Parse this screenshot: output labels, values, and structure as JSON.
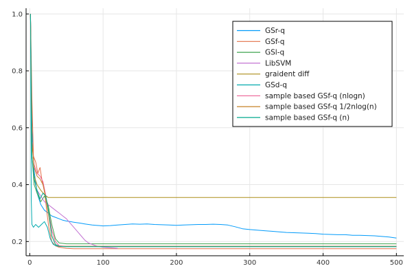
{
  "chart_data": {
    "type": "line",
    "title": "",
    "xlabel": "",
    "ylabel": "",
    "xlim": [
      -5,
      510
    ],
    "ylim": [
      0.15,
      1.02
    ],
    "xticks": [
      0,
      100,
      200,
      300,
      400,
      500
    ],
    "yticks": [
      0.2,
      0.4,
      0.6,
      0.8,
      1.0
    ],
    "xtick_labels": [
      "0",
      "100",
      "200",
      "300",
      "400",
      "500"
    ],
    "ytick_labels": [
      "0.2",
      "0.4",
      "0.6",
      "0.8",
      "1.0"
    ],
    "grid": true,
    "legend_position": "top-right",
    "series": [
      {
        "name": "GSr-q",
        "color": "#009AFA",
        "x": [
          1,
          3,
          6,
          10,
          15,
          20,
          25,
          30,
          35,
          40,
          45,
          50,
          55,
          60,
          65,
          70,
          75,
          80,
          85,
          90,
          95,
          100,
          110,
          120,
          130,
          140,
          150,
          160,
          170,
          180,
          190,
          200,
          210,
          220,
          230,
          240,
          250,
          260,
          270,
          280,
          290,
          300,
          310,
          320,
          330,
          340,
          350,
          360,
          370,
          380,
          390,
          400,
          410,
          420,
          430,
          440,
          450,
          460,
          470,
          480,
          490,
          500
        ],
        "y": [
          1.0,
          0.6,
          0.45,
          0.37,
          0.33,
          0.31,
          0.3,
          0.29,
          0.285,
          0.28,
          0.275,
          0.272,
          0.27,
          0.268,
          0.266,
          0.264,
          0.262,
          0.26,
          0.258,
          0.257,
          0.256,
          0.255,
          0.256,
          0.258,
          0.26,
          0.262,
          0.261,
          0.262,
          0.26,
          0.259,
          0.258,
          0.257,
          0.258,
          0.259,
          0.26,
          0.26,
          0.261,
          0.26,
          0.258,
          0.252,
          0.245,
          0.242,
          0.24,
          0.238,
          0.236,
          0.234,
          0.232,
          0.231,
          0.23,
          0.229,
          0.228,
          0.226,
          0.225,
          0.224,
          0.224,
          0.222,
          0.222,
          0.221,
          0.22,
          0.218,
          0.216,
          0.212
        ]
      },
      {
        "name": "GSf-q",
        "color": "#E36F47",
        "x": [
          1,
          3,
          5,
          8,
          11,
          14,
          17,
          20,
          23,
          26,
          30,
          35,
          40,
          50,
          60,
          80,
          100,
          150,
          200,
          250,
          300,
          350,
          400,
          450,
          500
        ],
        "y": [
          1.0,
          0.7,
          0.5,
          0.48,
          0.44,
          0.46,
          0.41,
          0.38,
          0.31,
          0.25,
          0.2,
          0.185,
          0.18,
          0.176,
          0.175,
          0.175,
          0.175,
          0.175,
          0.175,
          0.175,
          0.175,
          0.175,
          0.175,
          0.175,
          0.175
        ]
      },
      {
        "name": "GSl-q",
        "color": "#3EA44E",
        "x": [
          1,
          3,
          6,
          10,
          15,
          20,
          25,
          30,
          35,
          40,
          50,
          60,
          80,
          100,
          150,
          200,
          250,
          300,
          350,
          400,
          450,
          500
        ],
        "y": [
          1.0,
          0.5,
          0.4,
          0.37,
          0.34,
          0.36,
          0.33,
          0.26,
          0.21,
          0.195,
          0.192,
          0.192,
          0.192,
          0.192,
          0.192,
          0.192,
          0.192,
          0.192,
          0.192,
          0.192,
          0.192,
          0.192
        ]
      },
      {
        "name": "LibSVM",
        "color": "#C271D2",
        "x": [
          1,
          3,
          6,
          10,
          15,
          20,
          25,
          30,
          35,
          40,
          45,
          50,
          55,
          60,
          65,
          70,
          75,
          80,
          85,
          90,
          95,
          100,
          110,
          120
        ],
        "y": [
          1.0,
          0.5,
          0.42,
          0.38,
          0.36,
          0.34,
          0.33,
          0.32,
          0.31,
          0.3,
          0.29,
          0.28,
          0.265,
          0.25,
          0.235,
          0.22,
          0.205,
          0.195,
          0.19,
          0.185,
          0.182,
          0.18,
          0.178,
          0.176
        ]
      },
      {
        "name": "graident diff",
        "color": "#AC8D18",
        "x": [
          1,
          3,
          6,
          10,
          15,
          20,
          25,
          30,
          100,
          200,
          300,
          400,
          500
        ],
        "y": [
          1.0,
          0.5,
          0.43,
          0.4,
          0.38,
          0.365,
          0.355,
          0.355,
          0.355,
          0.355,
          0.355,
          0.355,
          0.355
        ]
      },
      {
        "name": "GSd-q",
        "color": "#00A9AD",
        "x": [
          1,
          2,
          3,
          5,
          8,
          12,
          16,
          20,
          24,
          28,
          32,
          36,
          40,
          50,
          60,
          80,
          100,
          150,
          200,
          250,
          300,
          350,
          400,
          450,
          500
        ],
        "y": [
          1.0,
          0.35,
          0.26,
          0.25,
          0.26,
          0.25,
          0.26,
          0.27,
          0.25,
          0.21,
          0.19,
          0.185,
          0.183,
          0.182,
          0.182,
          0.182,
          0.182,
          0.182,
          0.182,
          0.182,
          0.182,
          0.182,
          0.182,
          0.182,
          0.182
        ]
      },
      {
        "name": "sample based GSf-q (nlogn)",
        "color": "#ED5D92",
        "x": [
          1,
          3,
          6,
          10,
          14,
          18,
          22,
          26,
          30,
          35,
          40,
          50,
          60,
          80,
          100,
          150,
          200,
          250,
          300,
          350,
          400,
          450,
          500
        ],
        "y": [
          1.0,
          0.55,
          0.47,
          0.44,
          0.43,
          0.41,
          0.36,
          0.3,
          0.24,
          0.2,
          0.185,
          0.183,
          0.183,
          0.183,
          0.183,
          0.183,
          0.183,
          0.183,
          0.183,
          0.183,
          0.183,
          0.183,
          0.183
        ]
      },
      {
        "name": "sample based GSf-q 1/2nlog(n)",
        "color": "#C68225",
        "x": [
          1,
          3,
          6,
          10,
          14,
          18,
          22,
          26,
          30,
          35,
          40,
          50,
          60,
          80,
          100,
          150,
          200,
          250,
          300,
          350,
          400,
          450,
          500
        ],
        "y": [
          1.0,
          0.55,
          0.46,
          0.43,
          0.42,
          0.4,
          0.35,
          0.29,
          0.22,
          0.19,
          0.183,
          0.183,
          0.183,
          0.183,
          0.183,
          0.183,
          0.183,
          0.183,
          0.183,
          0.183,
          0.183,
          0.183,
          0.183
        ]
      },
      {
        "name": "sample based GSf-q (n)",
        "color": "#00A98D",
        "x": [
          1,
          3,
          6,
          10,
          14,
          18,
          22,
          26,
          30,
          35,
          40,
          50,
          60,
          80,
          100,
          150,
          200,
          250,
          300,
          350,
          400,
          450,
          500
        ],
        "y": [
          1.0,
          0.5,
          0.42,
          0.38,
          0.35,
          0.37,
          0.36,
          0.3,
          0.22,
          0.19,
          0.183,
          0.182,
          0.182,
          0.182,
          0.182,
          0.182,
          0.182,
          0.182,
          0.182,
          0.182,
          0.182,
          0.182,
          0.182
        ]
      }
    ]
  }
}
